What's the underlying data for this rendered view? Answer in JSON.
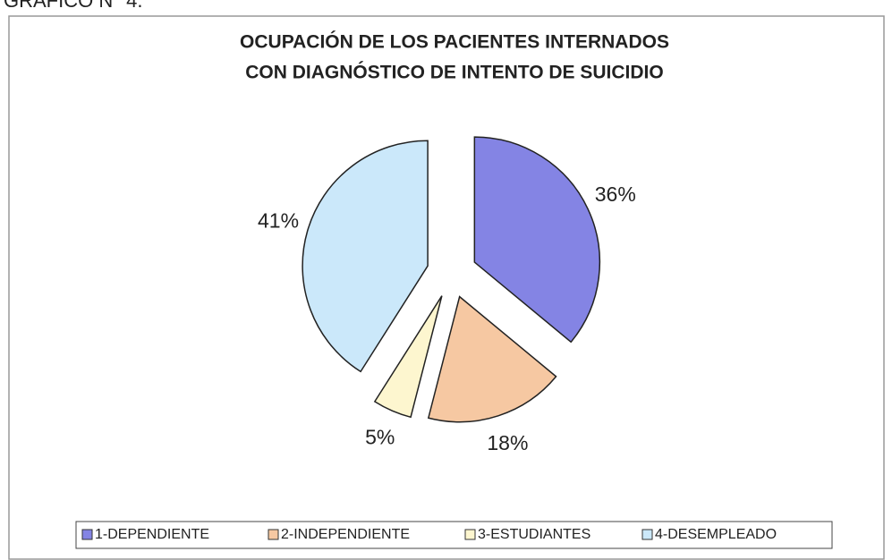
{
  "chart_data": {
    "type": "pie",
    "heading": "GRÁFICO N° 4.",
    "title": [
      "OCUPACIÓN DE LOS PACIENTES INTERNADOS",
      "CON DIAGNÓSTICO DE INTENTO DE SUICIDIO"
    ],
    "categories": [
      "1-DEPENDIENTE",
      "2-INDEPENDIENTE",
      "3-ESTUDIANTES",
      "4-DESEMPLEADO"
    ],
    "values": [
      36,
      18,
      5,
      41
    ],
    "value_labels": [
      "36%",
      "18%",
      "5%",
      "41%"
    ],
    "colors": [
      "#8484e4",
      "#f6c8a2",
      "#fdf6cf",
      "#cbe8fa"
    ],
    "legend": "bottom"
  }
}
